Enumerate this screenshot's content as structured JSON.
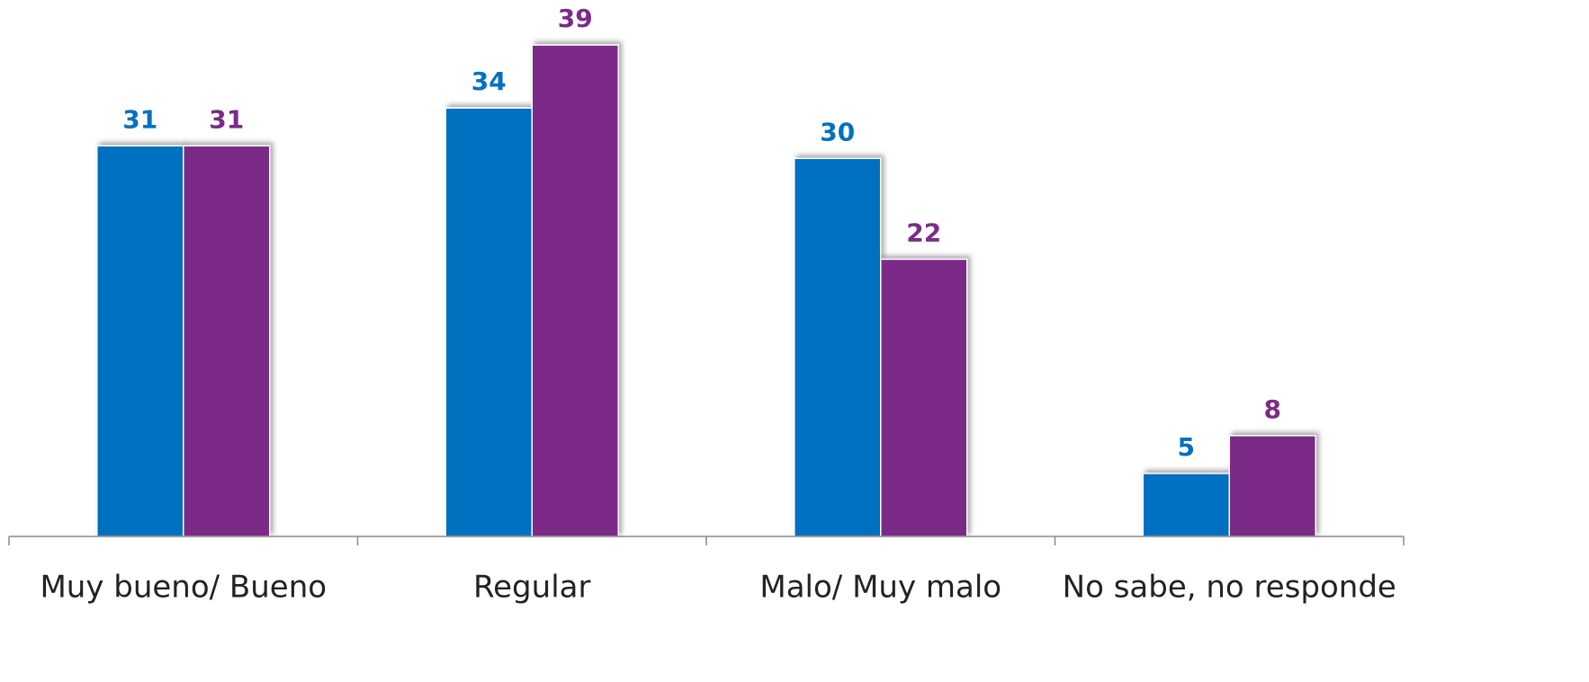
{
  "chart_data": {
    "type": "bar",
    "categories": [
      "Muy bueno/ Bueno",
      "Regular",
      "Malo/ Muy malo",
      "No sabe, no responde"
    ],
    "series": [
      {
        "color": "#0070C0",
        "values": [
          31,
          34,
          30,
          5
        ]
      },
      {
        "color": "#7B2C87",
        "values": [
          31,
          39,
          22,
          8
        ]
      }
    ],
    "ylim": [
      0,
      42
    ]
  }
}
